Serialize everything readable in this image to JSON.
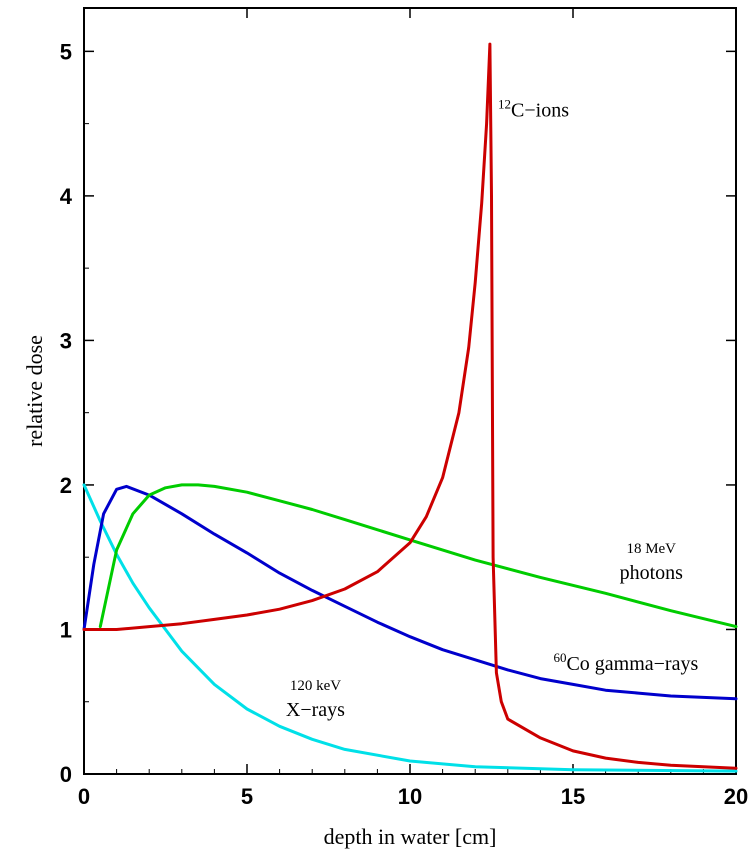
{
  "chart_data": {
    "type": "line",
    "xlabel": "depth in water [cm]",
    "ylabel": "relative dose",
    "xlim": [
      0,
      20
    ],
    "ylim": [
      0,
      5.3
    ],
    "x_ticks": [
      0,
      5,
      10,
      15,
      20
    ],
    "y_ticks": [
      0,
      1,
      2,
      3,
      4,
      5
    ],
    "grid": false,
    "legend": "none",
    "series": [
      {
        "color": "#00e0e8",
        "x": [
          0,
          0.5,
          1,
          1.5,
          2,
          3,
          4,
          5,
          6,
          7,
          8,
          10,
          12,
          15,
          20
        ],
        "y": [
          2.0,
          1.75,
          1.52,
          1.32,
          1.15,
          0.85,
          0.62,
          0.45,
          0.33,
          0.24,
          0.17,
          0.09,
          0.05,
          0.03,
          0.02
        ]
      },
      {
        "color": "#0000cc",
        "x": [
          0,
          0.3,
          0.6,
          1.0,
          1.3,
          2,
          3,
          4,
          5,
          6,
          7,
          8,
          9,
          10,
          11,
          12,
          13,
          14,
          15,
          16,
          17,
          18,
          19,
          20
        ],
        "y": [
          1.0,
          1.45,
          1.8,
          1.97,
          1.99,
          1.93,
          1.8,
          1.66,
          1.53,
          1.39,
          1.27,
          1.16,
          1.05,
          0.95,
          0.86,
          0.79,
          0.72,
          0.66,
          0.62,
          0.58,
          0.56,
          0.54,
          0.53,
          0.52
        ]
      },
      {
        "color": "#00cc00",
        "x": [
          0.5,
          1,
          1.5,
          2,
          2.5,
          3,
          3.5,
          4,
          5,
          6,
          7,
          8,
          10,
          12,
          14,
          16,
          18,
          20
        ],
        "y": [
          1.02,
          1.55,
          1.8,
          1.93,
          1.98,
          2.0,
          2.0,
          1.99,
          1.95,
          1.89,
          1.83,
          1.76,
          1.62,
          1.48,
          1.36,
          1.25,
          1.13,
          1.02
        ]
      },
      {
        "color": "#cc0000",
        "x": [
          0,
          1,
          2,
          3,
          4,
          5,
          6,
          7,
          8,
          9,
          10,
          10.5,
          11,
          11.5,
          11.8,
          12.0,
          12.2,
          12.35,
          12.45,
          12.5,
          12.55,
          12.65,
          12.8,
          13,
          14,
          15,
          16,
          17,
          18,
          19,
          20
        ],
        "y": [
          1.0,
          1.0,
          1.02,
          1.04,
          1.07,
          1.1,
          1.14,
          1.2,
          1.28,
          1.4,
          1.6,
          1.78,
          2.05,
          2.5,
          2.95,
          3.4,
          3.95,
          4.5,
          5.05,
          4.0,
          1.5,
          0.7,
          0.5,
          0.38,
          0.25,
          0.16,
          0.11,
          0.08,
          0.06,
          0.05,
          0.04
        ]
      }
    ],
    "annotations": [
      {
        "sup": "12",
        "text": "C−ions",
        "x": 12.7,
        "y": 4.55
      },
      {
        "line1": "18 MeV",
        "line2": "photons",
        "x": 17.4,
        "y": 1.53
      },
      {
        "sup": "60",
        "text": "Co gamma−rays",
        "x": 14.4,
        "y": 0.72
      },
      {
        "line1": "120 keV",
        "line2": "X−rays",
        "x": 7.1,
        "y": 0.58
      }
    ]
  }
}
